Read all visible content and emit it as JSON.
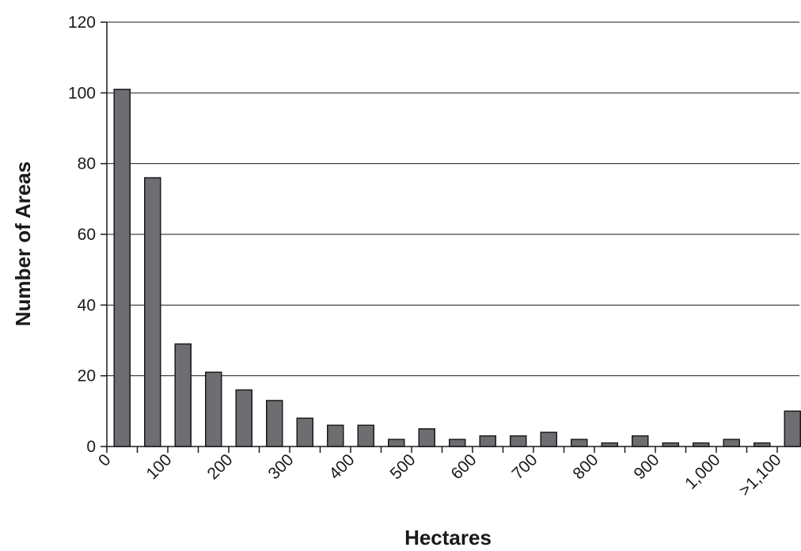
{
  "chart_data": {
    "type": "bar",
    "title": "",
    "xlabel": "Hectares",
    "ylabel": "Number of Areas",
    "ylim": [
      0,
      120
    ],
    "yticks": [
      0,
      20,
      40,
      60,
      80,
      100,
      120
    ],
    "grid": true,
    "bar_color": "#6d6e71",
    "x_tick_labels": [
      "0",
      "100",
      "200",
      "300",
      "400",
      "500",
      "600",
      "700",
      "800",
      "900",
      "1,000",
      ">1,100"
    ],
    "categories": [
      "0-50",
      "50-100",
      "100-150",
      "150-200",
      "200-250",
      "250-300",
      "300-350",
      "350-400",
      "400-450",
      "450-500",
      "500-550",
      "550-600",
      "600-650",
      "650-700",
      "700-750",
      "750-800",
      "800-850",
      "850-900",
      "900-950",
      "950-1,000",
      "1,000-1,050",
      "1,050-1,100",
      ">1,100"
    ],
    "values": [
      101,
      76,
      29,
      21,
      16,
      13,
      8,
      6,
      6,
      2,
      5,
      2,
      3,
      3,
      4,
      2,
      1,
      3,
      1,
      1,
      2,
      1,
      10
    ]
  }
}
